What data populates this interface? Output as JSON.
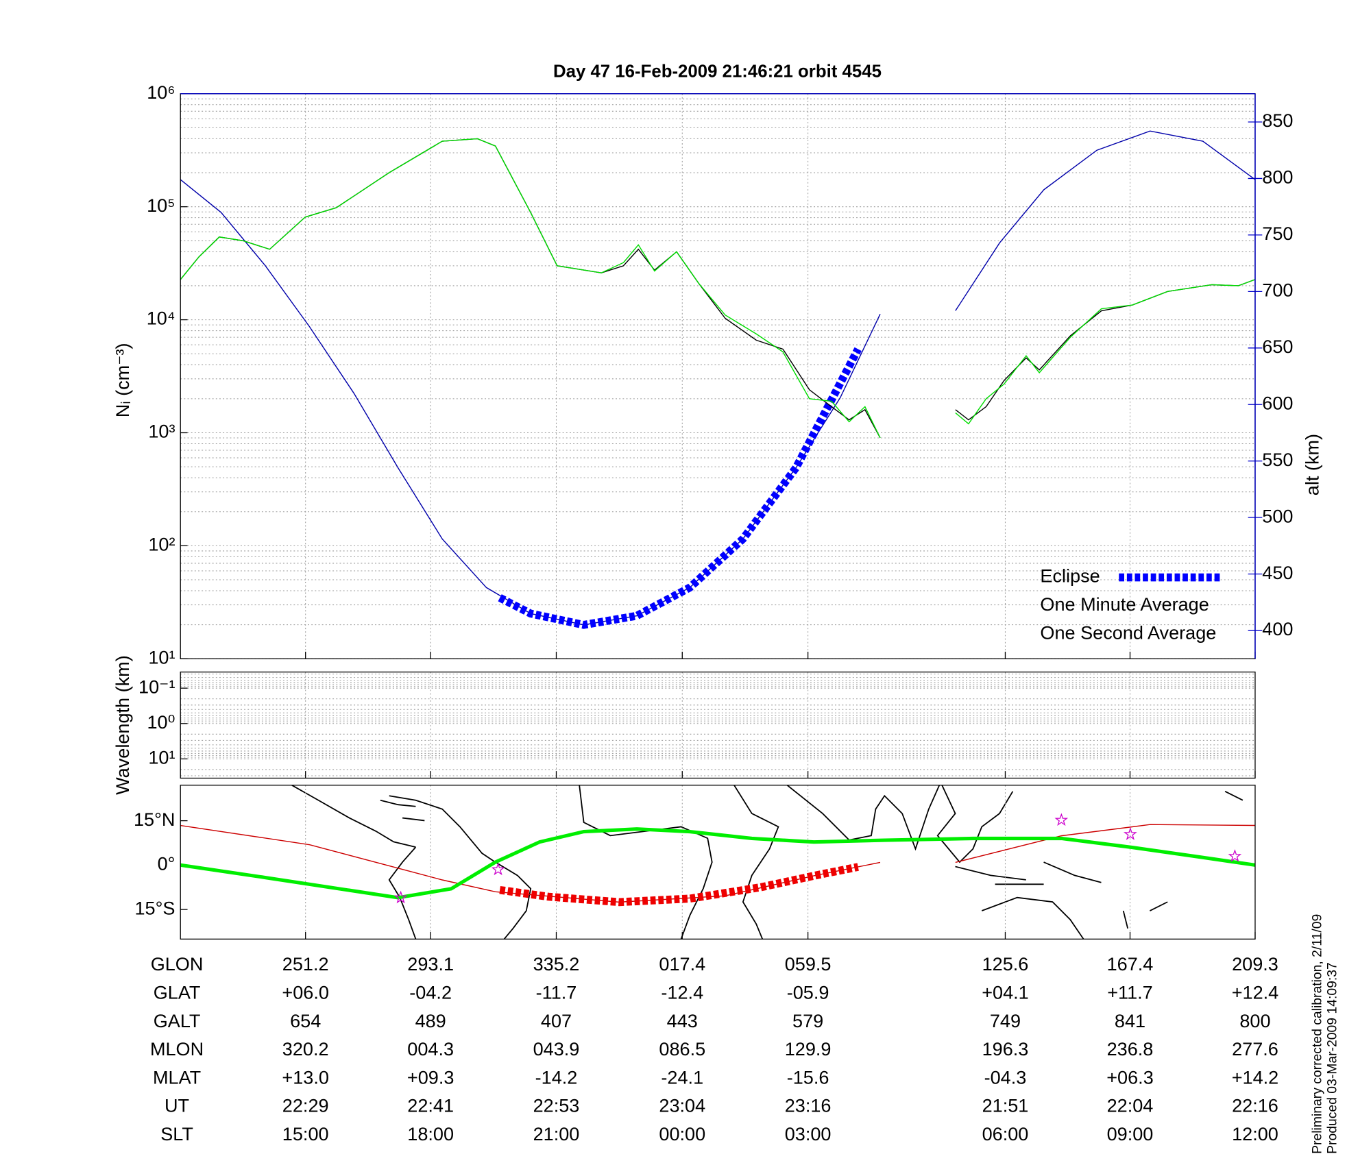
{
  "chart_data": [
    {
      "type": "line",
      "title": "Day 47  16-Feb-2009 21:46:21   orbit 4545",
      "ylabel": "Nᵢ (cm⁻³)",
      "y2label": "alt (km)",
      "yscale": "log",
      "xlim": [
        209.3,
        569.3
      ],
      "xticks": [
        251.2,
        293.1,
        335.2,
        377.4,
        419.5,
        485.6,
        527.4,
        569.3
      ],
      "ylim": [
        10,
        1000000
      ],
      "yticks": [
        {
          "value": 10,
          "label": "10¹"
        },
        {
          "value": 100,
          "label": "10²"
        },
        {
          "value": 1000,
          "label": "10³"
        },
        {
          "value": 10000,
          "label": "10⁴"
        },
        {
          "value": 100000,
          "label": "10⁵"
        },
        {
          "value": 1000000,
          "label": "10⁶"
        }
      ],
      "y2lim": [
        375,
        875
      ],
      "y2ticks": [
        400,
        450,
        500,
        550,
        600,
        650,
        700,
        750,
        800,
        850
      ],
      "y2color": "#0000cc",
      "grid": true,
      "legend": "lower right",
      "series": [
        {
          "color": "#0000aa",
          "axis": "y2",
          "style": "thin",
          "x": [
            209.3,
            222.9,
            237.7,
            252.5,
            267.4,
            282.2,
            297.0,
            311.8,
            326.6,
            344.4,
            362.2,
            379.9,
            397.7,
            415.5,
            430.3,
            443.7,
            456,
            468.9,
            483.7,
            498.5,
            516.3,
            534.1,
            551.8,
            569.3
          ],
          "values": [
            799,
            770,
            723,
            669,
            610,
            544,
            481,
            438,
            415,
            405,
            413,
            438,
            481,
            544,
            606,
            680,
            null,
            683,
            743,
            790,
            825,
            842,
            833,
            799
          ]
        },
        {
          "name": "Eclipse",
          "color": "#0000ff",
          "axis": "y2",
          "style": "dashed",
          "x": [
            316.3,
            326.6,
            344.4,
            362.2,
            379.9,
            397.7,
            415.5,
            436.3
          ],
          "values": [
            429,
            415,
            405,
            413,
            438,
            481,
            544,
            649
          ]
        },
        {
          "name": "One Minute Average",
          "color": "#000000",
          "style": "thin",
          "x": [
            209.3,
            215.5,
            222.3,
            230.3,
            239.2,
            251.1,
            261.5,
            279.2,
            297.0,
            308.8,
            314.8,
            326.6,
            335.5,
            350.3,
            357.7,
            362.7,
            368.1,
            375.5,
            382.9,
            391.8,
            402.2,
            411.1,
            420.0,
            427.4,
            433.3,
            438.6,
            443.7,
            456,
            468.9,
            473.3,
            479.2,
            485.2,
            492.6,
            497.0,
            507.4,
            517.8,
            528.2,
            540.0,
            554.8,
            563.7,
            569.3
          ],
          "values": [
            22700,
            36000,
            54000,
            50000,
            42000,
            81000,
            98000,
            200000,
            380000,
            400000,
            345000,
            89000,
            30000,
            26000,
            30000,
            42000,
            27500,
            40000,
            21000,
            10300,
            6600,
            5500,
            2400,
            1700,
            1300,
            1600,
            900,
            null,
            1600,
            1300,
            1700,
            2900,
            4600,
            3600,
            7200,
            12000,
            13500,
            17800,
            20400,
            20000,
            22700
          ]
        },
        {
          "name": "One Second Average",
          "color": "#00dd00",
          "style": "thin",
          "x": [
            209.3,
            215.5,
            222.3,
            230.3,
            239.2,
            251.1,
            261.5,
            279.2,
            297.0,
            308.8,
            314.8,
            326.6,
            335.5,
            350.3,
            357.7,
            362.7,
            368.1,
            375.5,
            382.9,
            391.8,
            402.2,
            411.1,
            420.0,
            427.4,
            433.3,
            438.6,
            443.7,
            456,
            468.9,
            473.3,
            479.2,
            485.2,
            492.6,
            497.0,
            507.4,
            517.8,
            528.2,
            540.0,
            554.8,
            563.7,
            569.3
          ],
          "values": [
            22700,
            36000,
            54000,
            50000,
            42000,
            81000,
            98000,
            200000,
            380000,
            400000,
            345000,
            89000,
            30000,
            26000,
            32000,
            46000,
            27000,
            40000,
            21000,
            11000,
            7500,
            5200,
            2000,
            1900,
            1250,
            1700,
            900,
            null,
            1500,
            1200,
            2000,
            2700,
            4800,
            3400,
            7000,
            12500,
            13500,
            17800,
            20400,
            20000,
            22700
          ]
        }
      ]
    },
    {
      "type": "line",
      "ylabel": "Wavelength (km)",
      "yscale": "log",
      "y_inverted": true,
      "xlim": [
        209.3,
        569.3
      ],
      "xticks": [
        251.2,
        293.1,
        335.2,
        377.4,
        419.5,
        485.6,
        527.4,
        569.3
      ],
      "ylim": [
        0.035,
        35
      ],
      "yticks": [
        {
          "value": 0.1,
          "label": "10⁻¹"
        },
        {
          "value": 1,
          "label": "10⁰"
        },
        {
          "value": 10,
          "label": "10¹"
        }
      ],
      "grid": true,
      "series": []
    },
    {
      "type": "map",
      "xlim": [
        209.3,
        569.3
      ],
      "xticks": [
        251.2,
        293.1,
        335.2,
        377.4,
        419.5,
        485.6,
        527.4,
        569.3
      ],
      "ylim": [
        -25,
        27
      ],
      "yticks": [
        {
          "value": 15,
          "label": "15°N"
        },
        {
          "value": 0,
          "label": "0°"
        },
        {
          "value": -15,
          "label": "15°S"
        }
      ],
      "grid": "x",
      "series": [
        {
          "color": "#cc0000",
          "style": "thin",
          "x": [
            209.3,
            252.6,
            297.0,
            314.8,
            356.3,
            391.8,
            421.5,
            443.7,
            456,
            468.9,
            504.4,
            534.1,
            569.3
          ],
          "values": [
            13.4,
            6.9,
            -5,
            -9,
            -12.5,
            -10.4,
            -3.6,
            0.9,
            null,
            0.9,
            9.9,
            13.7,
            13.4
          ]
        },
        {
          "color": "#ee0000",
          "style": "dashed",
          "x": [
            316.3,
            332.6,
            356.3,
            380.0,
            403.7,
            421.5,
            436.3
          ],
          "values": [
            -8.4,
            -10.7,
            -12.5,
            -11.3,
            -7.5,
            -3.6,
            -0.6
          ]
        },
        {
          "color": "#00ee00",
          "style": "thick",
          "x": [
            209.3,
            237.7,
            282.2,
            300.0,
            314.8,
            329.6,
            344.4,
            362.2,
            379.9,
            400.7,
            421.5,
            445.2,
            474.8,
            504.4,
            528.1,
            548.9,
            569.3
          ],
          "values": [
            0,
            -4.2,
            -11,
            -8,
            1,
            7.8,
            11.3,
            12.2,
            11.3,
            9,
            7.8,
            8.4,
            9,
            9,
            6,
            3,
            0
          ]
        }
      ],
      "markers": {
        "color": "#cc00cc",
        "x": [
          283.1,
          315.7,
          504.4,
          527.5,
          562.5
        ],
        "values": [
          -11,
          -1.5,
          15.2,
          10.4,
          3
        ]
      }
    }
  ],
  "table": {
    "rows": [
      {
        "label": "GLON",
        "cells": [
          "251.2",
          "293.1",
          "335.2",
          "017.4",
          "059.5",
          "125.6",
          "167.4",
          "209.3"
        ]
      },
      {
        "label": "GLAT",
        "cells": [
          "+06.0",
          "-04.2",
          "-11.7",
          "-12.4",
          "-05.9",
          "+04.1",
          "+11.7",
          "+12.4"
        ]
      },
      {
        "label": "GALT",
        "cells": [
          "654",
          "489",
          "407",
          "443",
          "579",
          "749",
          "841",
          "800"
        ]
      },
      {
        "label": "MLON",
        "cells": [
          "320.2",
          "004.3",
          "043.9",
          "086.5",
          "129.9",
          "196.3",
          "236.8",
          "277.6"
        ]
      },
      {
        "label": "MLAT",
        "cells": [
          "+13.0",
          "+09.3",
          "-14.2",
          "-24.1",
          "-15.6",
          "-04.3",
          "+06.3",
          "+14.2"
        ]
      },
      {
        "label": "UT",
        "cells": [
          "22:29",
          "22:41",
          "22:53",
          "23:04",
          "23:16",
          "21:51",
          "22:04",
          "22:16"
        ]
      },
      {
        "label": "SLT",
        "cells": [
          "15:00",
          "18:00",
          "21:00",
          "00:00",
          "03:00",
          "06:00",
          "09:00",
          "12:00"
        ]
      }
    ]
  },
  "notes": [
    "Preliminary corrected calibration, 2/11/09",
    "Produced 03-Mar-2009 14:09:37"
  ]
}
